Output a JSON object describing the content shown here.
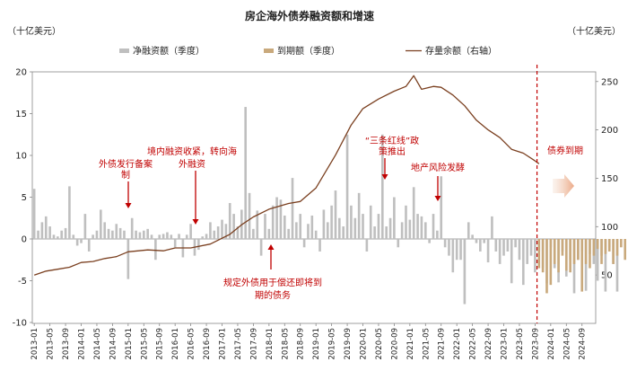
{
  "chart_data": {
    "type": "bar",
    "title": "房企海外债券融资额和增速",
    "left_unit": "（十亿美元）",
    "right_unit": "（十亿美元）",
    "ylim": [
      -10,
      20
    ],
    "y_ticks": [
      "20",
      "15",
      "10",
      "5",
      "0",
      "-5",
      "-10"
    ],
    "y2lim": [
      0,
      260
    ],
    "y2_ticks": [
      "250",
      "200",
      "150",
      "100",
      "50"
    ],
    "x_ticks": [
      "2013-01",
      "2013-05",
      "2013-09",
      "2014-01",
      "2014-05",
      "2014-09",
      "2015-01",
      "2015-05",
      "2015-09",
      "2016-01",
      "2016-05",
      "2016-09",
      "2017-01",
      "2017-05",
      "2017-09",
      "2018-01",
      "2018-05",
      "2018-09",
      "2019-01",
      "2019-05",
      "2019-09",
      "2020-01",
      "2020-05",
      "2020-09",
      "2021-01",
      "2021-05",
      "2021-09",
      "2022-01",
      "2022-05",
      "2022-09",
      "2023-01",
      "2023-05",
      "2023-09",
      "2024-01",
      "2024-05",
      "2024-09"
    ],
    "legend": [
      "净融资额（季度）",
      "到期额（季度）",
      "存量余额（右轴）"
    ],
    "colors": {
      "net": "#bfbfbf",
      "maturity": "#c9a97c",
      "stock": "#7a3f1f",
      "annotation": "#c00000"
    },
    "series": [
      {
        "name": "净融资额（季度）",
        "start": "2013-01",
        "values": [
          6.0,
          1.0,
          2.0,
          2.7,
          1.5,
          0.5,
          0.3,
          1.0,
          1.3,
          6.3,
          0.5,
          -0.8,
          -0.5,
          3.0,
          -1.5,
          0.5,
          1.0,
          3.5,
          2.0,
          1.2,
          1.0,
          1.8,
          1.3,
          1.0,
          -4.8,
          2.5,
          1.0,
          0.8,
          1.0,
          1.2,
          0.5,
          -2.5,
          0.5,
          0.6,
          0.8,
          0.5,
          -1.0,
          0.6,
          -2.2,
          0.5,
          1.8,
          -2.0,
          -1.3,
          0.3,
          0.6,
          2.0,
          1.0,
          1.5,
          2.3,
          1.8,
          4.3,
          3.0,
          1.5,
          3.5,
          15.8,
          5.5,
          1.2,
          3.4,
          -2.0,
          3.0,
          1.2,
          4.0,
          5.0,
          4.7,
          2.8,
          1.2,
          7.3,
          2.0,
          3.0,
          -1.0,
          1.8,
          2.8,
          1.0,
          -1.5,
          3.5,
          2.0,
          4.0,
          5.8,
          2.5,
          1.5,
          12.5,
          4.0,
          2.5,
          5.5,
          3.0,
          -1.5,
          4.0,
          1.5,
          3.0,
          12.5,
          1.5,
          2.5,
          5.0,
          -1.0,
          2.0,
          4.0,
          2.3,
          6.2,
          3.0,
          2.7,
          2.0,
          -0.5,
          3.0,
          1.0,
          7.5,
          -1.0,
          -2.0,
          -4.0,
          -2.5,
          -2.5,
          -7.8,
          2.0,
          0.5,
          -0.5,
          -1.5,
          -0.5,
          -2.8,
          2.7,
          -1.5,
          -3.0,
          -2.0,
          -1.5,
          -5.3,
          -1.0,
          -2.5,
          -5.5,
          -3.0,
          -2.0,
          -4.0,
          -1.5,
          -3.5,
          -5.3,
          -1.0,
          -3.5,
          -5.2,
          -1.5,
          -4.5,
          -2.5,
          -6.5,
          -2.5,
          -1.5,
          -6.2,
          -1.8,
          -3.0,
          -5.0,
          -2.0,
          -6.3,
          -1.0,
          -3.0,
          -6.3
        ]
      },
      {
        "name": "到期额（季度）",
        "start": "2023-10",
        "values": [
          -3.5,
          -4.0,
          -6.5,
          -5.5,
          -3.0,
          -4.0,
          -2.0,
          -3.8,
          -4.0,
          -3.0,
          -2.5,
          -6.3,
          -3.0,
          -3.5,
          -2.0,
          -1.2,
          -3.0,
          -1.8,
          -1.5,
          -3.0,
          -2.0,
          -1.0,
          -2.5
        ]
      },
      {
        "name": "存量余额（右轴）",
        "points": [
          [
            "2013-01",
            50
          ],
          [
            "2013-04",
            54
          ],
          [
            "2013-07",
            56
          ],
          [
            "2013-10",
            58
          ],
          [
            "2014-01",
            63
          ],
          [
            "2014-04",
            64
          ],
          [
            "2014-07",
            67
          ],
          [
            "2014-10",
            69
          ],
          [
            "2015-01",
            74
          ],
          [
            "2015-06",
            76
          ],
          [
            "2015-10",
            75
          ],
          [
            "2016-01",
            78
          ],
          [
            "2016-05",
            78
          ],
          [
            "2016-10",
            82
          ],
          [
            "2017-01",
            88
          ],
          [
            "2017-03",
            92
          ],
          [
            "2017-06",
            102
          ],
          [
            "2017-09",
            110
          ],
          [
            "2018-01",
            118
          ],
          [
            "2018-06",
            124
          ],
          [
            "2018-09",
            126
          ],
          [
            "2019-01",
            140
          ],
          [
            "2019-06",
            174
          ],
          [
            "2019-10",
            205
          ],
          [
            "2020-01",
            222
          ],
          [
            "2020-05",
            232
          ],
          [
            "2020-09",
            240
          ],
          [
            "2020-12",
            245
          ],
          [
            "2021-02",
            256
          ],
          [
            "2021-04",
            242
          ],
          [
            "2021-07",
            245
          ],
          [
            "2021-09",
            244
          ],
          [
            "2021-12",
            236
          ],
          [
            "2022-03",
            225
          ],
          [
            "2022-06",
            210
          ],
          [
            "2022-09",
            200
          ],
          [
            "2022-12",
            192
          ],
          [
            "2023-03",
            180
          ],
          [
            "2023-06",
            176
          ],
          [
            "2023-09",
            168
          ],
          [
            "2023-10",
            165
          ]
        ]
      }
    ],
    "forecast_start": "2023-10",
    "annotations": [
      {
        "text": "外债发行备案",
        "text2": "制",
        "date": "2015-02"
      },
      {
        "text": "境内融资收紧，转向海",
        "text2": "外融资",
        "date": "2016-07"
      },
      {
        "text": "规定外债用于偿还即将到",
        "text2": "期的债务",
        "date": "2018-03"
      },
      {
        "text": "“三条红线”政",
        "text2": "策推出",
        "date": "2020-08"
      },
      {
        "text": "地产风险发酵",
        "text2": "",
        "date": "2021-08"
      },
      {
        "text": "债券到期",
        "text2": "",
        "date": "2024-04"
      }
    ]
  }
}
